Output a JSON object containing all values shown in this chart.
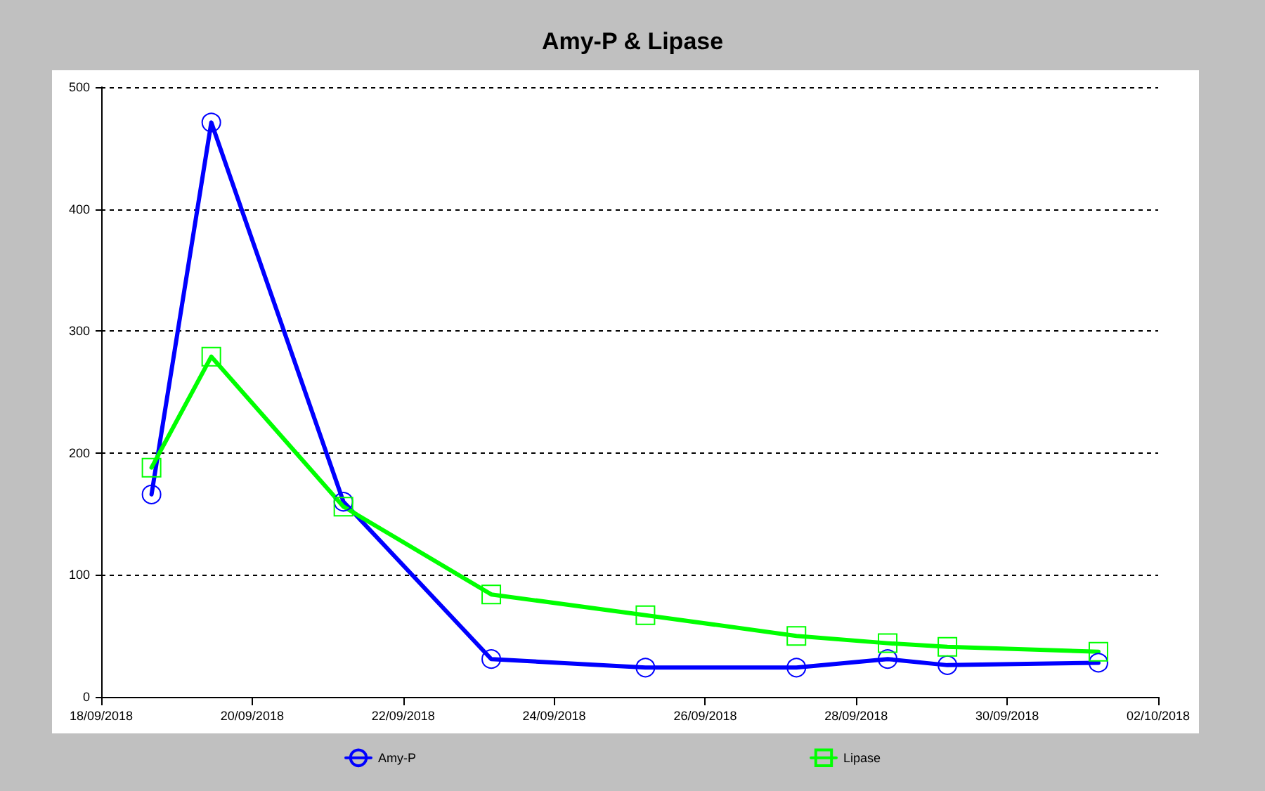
{
  "chart_data": {
    "type": "line",
    "title": "Amy-P & Lipase",
    "x": [
      "2018-09-18T16:00",
      "2018-09-19T11:00",
      "2018-09-21T05:00",
      "2018-09-23T04:00",
      "2018-09-25T05:00",
      "2018-09-27T05:00",
      "2018-09-28T10:00",
      "2018-09-29T05:00",
      "2018-10-01T05:00"
    ],
    "series": [
      {
        "name": "Amy-P",
        "color": "#0000ff",
        "marker": "circle",
        "values": [
          166,
          471,
          160,
          31,
          24,
          24,
          31,
          26,
          28
        ]
      },
      {
        "name": "Lipase",
        "color": "#00ff00",
        "marker": "square",
        "values": [
          188,
          279,
          156,
          84,
          67,
          50,
          44,
          41,
          37
        ]
      }
    ],
    "xlim": [
      "2018-09-18",
      "2018-10-02"
    ],
    "xticks": [
      {
        "value": "2018-09-18",
        "label": "18/09/2018"
      },
      {
        "value": "2018-09-20",
        "label": "20/09/2018"
      },
      {
        "value": "2018-09-22",
        "label": "22/09/2018"
      },
      {
        "value": "2018-09-24",
        "label": "24/09/2018"
      },
      {
        "value": "2018-09-26",
        "label": "26/09/2018"
      },
      {
        "value": "2018-09-28",
        "label": "28/09/2018"
      },
      {
        "value": "2018-09-30",
        "label": "30/09/2018"
      },
      {
        "value": "2018-10-02",
        "label": "02/10/2018"
      }
    ],
    "ylim": [
      0,
      500
    ],
    "yticks": [
      0,
      100,
      200,
      300,
      400,
      500
    ],
    "grid": "y",
    "legend": "bottom",
    "line_style": "solid"
  }
}
